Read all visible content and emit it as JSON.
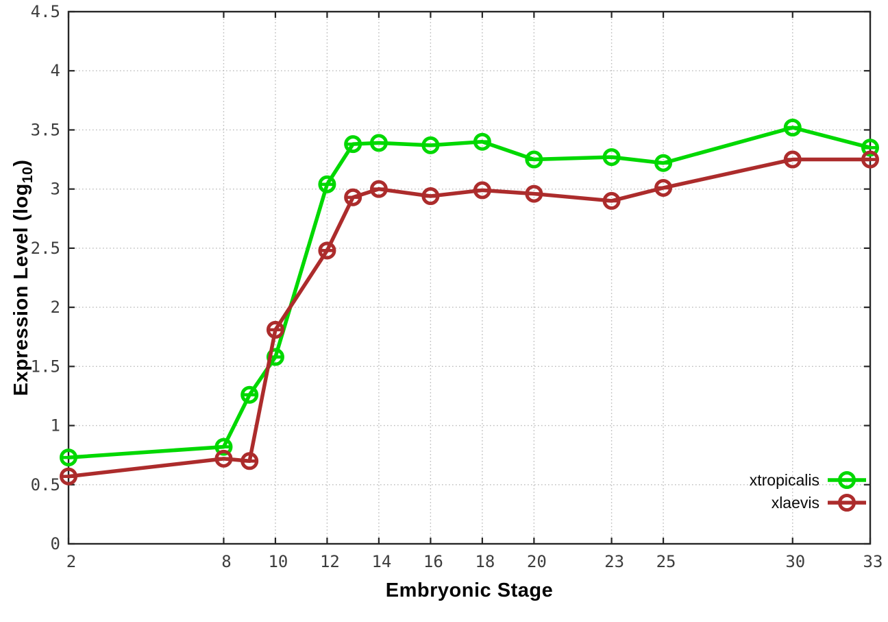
{
  "chart_data": {
    "type": "line",
    "title": "",
    "xlabel": "Embryonic Stage",
    "ylabel": "Expression Level (log10)",
    "ylabel_prefix": "Expression Level (log",
    "ylabel_sub": "10",
    "ylabel_suffix": ")",
    "x": [
      2,
      8,
      9,
      10,
      12,
      13,
      14,
      16,
      18,
      20,
      23,
      25,
      30,
      33
    ],
    "series": [
      {
        "name": "xtropicalis",
        "color": "#00D800",
        "values": [
          0.73,
          0.82,
          1.26,
          1.58,
          3.04,
          3.38,
          3.39,
          3.37,
          3.4,
          3.25,
          3.27,
          3.22,
          3.52,
          3.35
        ]
      },
      {
        "name": "xlaevis",
        "color": "#AC2C2C",
        "values": [
          0.57,
          0.72,
          0.7,
          1.81,
          2.48,
          2.93,
          3.0,
          2.94,
          2.99,
          2.96,
          2.9,
          3.01,
          3.25,
          3.25
        ]
      }
    ],
    "xticks": [
      2,
      8,
      10,
      12,
      14,
      16,
      18,
      20,
      23,
      25,
      30,
      33
    ],
    "ytick_labels": [
      "0",
      "0.5",
      "1",
      "1.5",
      "2",
      "2.5",
      "3",
      "3.5",
      "4",
      "4.5"
    ],
    "ytick_values": [
      0,
      0.5,
      1,
      1.5,
      2,
      2.5,
      3,
      3.5,
      4,
      4.5
    ],
    "xlim": [
      2,
      33
    ],
    "ylim": [
      0,
      4.5
    ],
    "grid": true,
    "legend_position": "bottom-right",
    "marker": "open-circle-with-errorcap",
    "axis_color": "#262626",
    "grid_color": "#bcbcbc",
    "tick_label_color": "#3d3d3d"
  }
}
